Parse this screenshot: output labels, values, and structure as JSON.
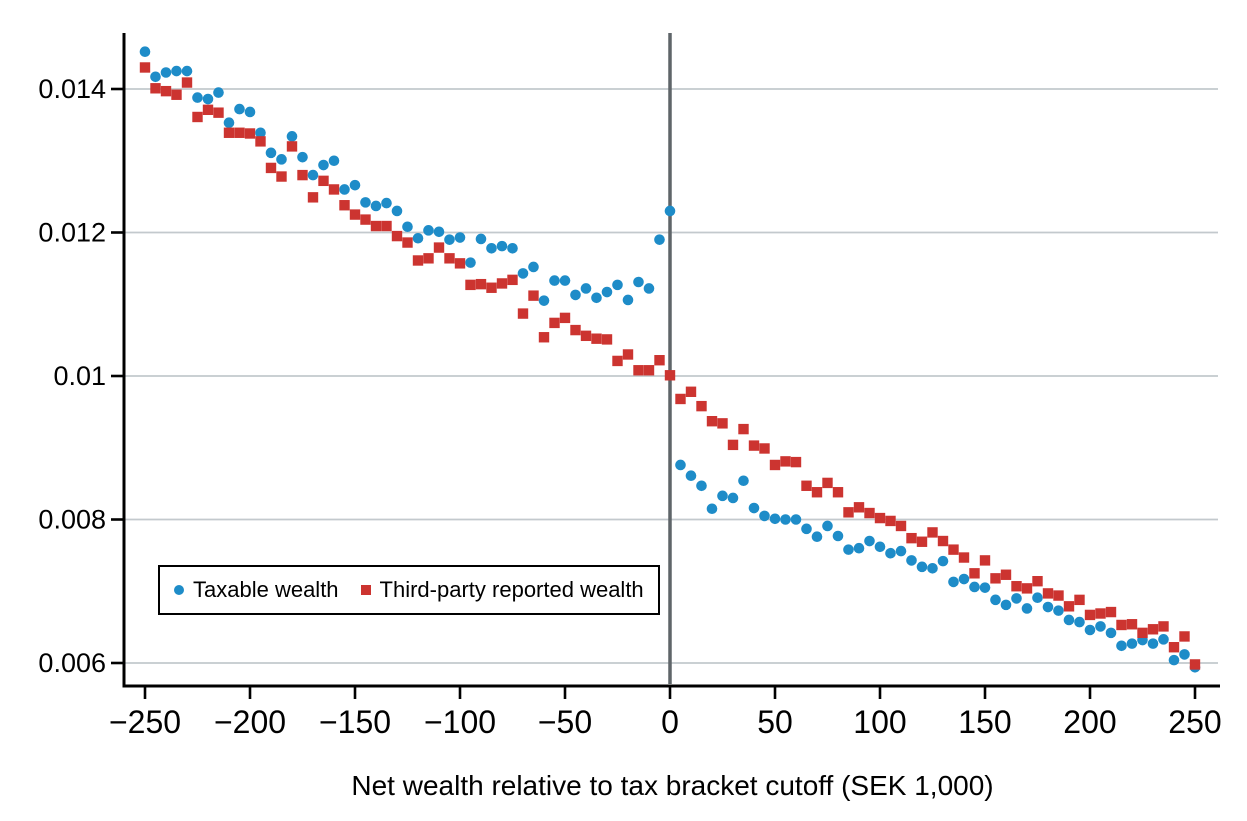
{
  "chart_data": {
    "type": "scatter",
    "title": "",
    "xlabel": "Net wealth relative to tax bracket cutoff (SEK 1,000)",
    "ylabel": "",
    "xlim": [
      -259,
      262
    ],
    "ylim": [
      0.0057,
      0.0148
    ],
    "grid": "horizontal",
    "reference_line_x": 0,
    "legend_position": "inside-bottom-left",
    "x_ticks": [
      -250,
      -200,
      -150,
      -100,
      -50,
      0,
      50,
      100,
      150,
      200,
      250
    ],
    "x_tick_labels": [
      "−250",
      "−200",
      "−150",
      "−100",
      "−50",
      "0",
      "50",
      "100",
      "150",
      "200",
      "250"
    ],
    "y_ticks": [
      0.006,
      0.008,
      0.01,
      0.012,
      0.014
    ],
    "y_tick_labels": [
      "0.006",
      "0.008",
      "0.01",
      "0.012",
      "0.014"
    ],
    "colors": {
      "taxable": "#1e8cc8",
      "third_party": "#cc3430",
      "gridline": "#c3c9cd",
      "reference_line": "#5f6569",
      "axis": "#000000"
    },
    "series": [
      {
        "name": "Taxable wealth",
        "marker": "circle",
        "color": "#1e8cc8",
        "points": [
          [
            -250,
            0.01452
          ],
          [
            -245,
            0.01417
          ],
          [
            -240,
            0.01423
          ],
          [
            -235,
            0.01425
          ],
          [
            -230,
            0.01425
          ],
          [
            -225,
            0.01388
          ],
          [
            -220,
            0.01386
          ],
          [
            -215,
            0.01395
          ],
          [
            -210,
            0.01353
          ],
          [
            -205,
            0.01372
          ],
          [
            -200,
            0.01368
          ],
          [
            -195,
            0.01339
          ],
          [
            -190,
            0.01311
          ],
          [
            -185,
            0.01302
          ],
          [
            -180,
            0.01334
          ],
          [
            -175,
            0.01305
          ],
          [
            -170,
            0.0128
          ],
          [
            -165,
            0.01294
          ],
          [
            -160,
            0.013
          ],
          [
            -155,
            0.0126
          ],
          [
            -150,
            0.01266
          ],
          [
            -145,
            0.01242
          ],
          [
            -140,
            0.01237
          ],
          [
            -135,
            0.01241
          ],
          [
            -130,
            0.0123
          ],
          [
            -125,
            0.01208
          ],
          [
            -120,
            0.01192
          ],
          [
            -115,
            0.01203
          ],
          [
            -110,
            0.01201
          ],
          [
            -105,
            0.0119
          ],
          [
            -100,
            0.01193
          ],
          [
            -95,
            0.01158
          ],
          [
            -90,
            0.01191
          ],
          [
            -85,
            0.01178
          ],
          [
            -80,
            0.01181
          ],
          [
            -75,
            0.01178
          ],
          [
            -70,
            0.01143
          ],
          [
            -65,
            0.01152
          ],
          [
            -60,
            0.01105
          ],
          [
            -55,
            0.01133
          ],
          [
            -50,
            0.01133
          ],
          [
            -45,
            0.01113
          ],
          [
            -40,
            0.01122
          ],
          [
            -35,
            0.01109
          ],
          [
            -30,
            0.01117
          ],
          [
            -25,
            0.01127
          ],
          [
            -20,
            0.01106
          ],
          [
            -15,
            0.01131
          ],
          [
            -10,
            0.01122
          ],
          [
            -5,
            0.0119
          ],
          [
            0,
            0.0123
          ],
          [
            5,
            0.00876
          ],
          [
            10,
            0.00861
          ],
          [
            15,
            0.00847
          ],
          [
            20,
            0.00815
          ],
          [
            25,
            0.00833
          ],
          [
            30,
            0.0083
          ],
          [
            35,
            0.00854
          ],
          [
            40,
            0.00816
          ],
          [
            45,
            0.00805
          ],
          [
            50,
            0.00801
          ],
          [
            55,
            0.008
          ],
          [
            60,
            0.008
          ],
          [
            65,
            0.00787
          ],
          [
            70,
            0.00776
          ],
          [
            75,
            0.00791
          ],
          [
            80,
            0.00777
          ],
          [
            85,
            0.00758
          ],
          [
            90,
            0.0076
          ],
          [
            95,
            0.0077
          ],
          [
            100,
            0.00762
          ],
          [
            105,
            0.00753
          ],
          [
            110,
            0.00756
          ],
          [
            115,
            0.00743
          ],
          [
            120,
            0.00734
          ],
          [
            125,
            0.00732
          ],
          [
            130,
            0.00742
          ],
          [
            135,
            0.00713
          ],
          [
            140,
            0.00717
          ],
          [
            145,
            0.00706
          ],
          [
            150,
            0.00705
          ],
          [
            155,
            0.00688
          ],
          [
            160,
            0.00681
          ],
          [
            165,
            0.0069
          ],
          [
            170,
            0.00676
          ],
          [
            175,
            0.00691
          ],
          [
            180,
            0.00678
          ],
          [
            185,
            0.00673
          ],
          [
            190,
            0.0066
          ],
          [
            195,
            0.00657
          ],
          [
            200,
            0.00646
          ],
          [
            205,
            0.00651
          ],
          [
            210,
            0.00642
          ],
          [
            215,
            0.00624
          ],
          [
            220,
            0.00627
          ],
          [
            225,
            0.00632
          ],
          [
            230,
            0.00627
          ],
          [
            235,
            0.00633
          ],
          [
            240,
            0.00604
          ],
          [
            245,
            0.00612
          ],
          [
            250,
            0.00594
          ]
        ]
      },
      {
        "name": "Third-party reported wealth",
        "marker": "square",
        "color": "#cc3430",
        "points": [
          [
            -250,
            0.0143
          ],
          [
            -245,
            0.01401
          ],
          [
            -240,
            0.01397
          ],
          [
            -235,
            0.01392
          ],
          [
            -230,
            0.01409
          ],
          [
            -225,
            0.01361
          ],
          [
            -220,
            0.01371
          ],
          [
            -215,
            0.01367
          ],
          [
            -210,
            0.01339
          ],
          [
            -205,
            0.01339
          ],
          [
            -200,
            0.01338
          ],
          [
            -195,
            0.01327
          ],
          [
            -190,
            0.0129
          ],
          [
            -185,
            0.01278
          ],
          [
            -180,
            0.0132
          ],
          [
            -175,
            0.0128
          ],
          [
            -170,
            0.01249
          ],
          [
            -165,
            0.01272
          ],
          [
            -160,
            0.0126
          ],
          [
            -155,
            0.01238
          ],
          [
            -150,
            0.01225
          ],
          [
            -145,
            0.01218
          ],
          [
            -140,
            0.01209
          ],
          [
            -135,
            0.01209
          ],
          [
            -130,
            0.01195
          ],
          [
            -125,
            0.01186
          ],
          [
            -120,
            0.01161
          ],
          [
            -115,
            0.01164
          ],
          [
            -110,
            0.01179
          ],
          [
            -105,
            0.01164
          ],
          [
            -100,
            0.01157
          ],
          [
            -95,
            0.01127
          ],
          [
            -90,
            0.01128
          ],
          [
            -85,
            0.01123
          ],
          [
            -80,
            0.01129
          ],
          [
            -75,
            0.01134
          ],
          [
            -70,
            0.01087
          ],
          [
            -65,
            0.01112
          ],
          [
            -60,
            0.01054
          ],
          [
            -55,
            0.01074
          ],
          [
            -50,
            0.01081
          ],
          [
            -45,
            0.01064
          ],
          [
            -40,
            0.01056
          ],
          [
            -35,
            0.01052
          ],
          [
            -30,
            0.01051
          ],
          [
            -25,
            0.01021
          ],
          [
            -20,
            0.0103
          ],
          [
            -15,
            0.01008
          ],
          [
            -10,
            0.01008
          ],
          [
            -5,
            0.01022
          ],
          [
            0,
            0.01001
          ],
          [
            5,
            0.00968
          ],
          [
            10,
            0.00978
          ],
          [
            15,
            0.00958
          ],
          [
            20,
            0.00937
          ],
          [
            25,
            0.00934
          ],
          [
            30,
            0.00904
          ],
          [
            35,
            0.00926
          ],
          [
            40,
            0.00903
          ],
          [
            45,
            0.00899
          ],
          [
            50,
            0.00876
          ],
          [
            55,
            0.00881
          ],
          [
            60,
            0.0088
          ],
          [
            65,
            0.00847
          ],
          [
            70,
            0.00838
          ],
          [
            75,
            0.00851
          ],
          [
            80,
            0.00838
          ],
          [
            85,
            0.0081
          ],
          [
            90,
            0.00817
          ],
          [
            95,
            0.00809
          ],
          [
            100,
            0.00802
          ],
          [
            105,
            0.00798
          ],
          [
            110,
            0.00791
          ],
          [
            115,
            0.00774
          ],
          [
            120,
            0.00769
          ],
          [
            125,
            0.00782
          ],
          [
            130,
            0.0077
          ],
          [
            135,
            0.00758
          ],
          [
            140,
            0.00747
          ],
          [
            145,
            0.00725
          ],
          [
            150,
            0.00743
          ],
          [
            155,
            0.00718
          ],
          [
            160,
            0.00723
          ],
          [
            165,
            0.00707
          ],
          [
            170,
            0.00704
          ],
          [
            175,
            0.00714
          ],
          [
            180,
            0.00697
          ],
          [
            185,
            0.00694
          ],
          [
            190,
            0.00679
          ],
          [
            195,
            0.00688
          ],
          [
            200,
            0.00667
          ],
          [
            205,
            0.00669
          ],
          [
            210,
            0.00671
          ],
          [
            215,
            0.00653
          ],
          [
            220,
            0.00654
          ],
          [
            225,
            0.00642
          ],
          [
            230,
            0.00647
          ],
          [
            235,
            0.00651
          ],
          [
            240,
            0.00622
          ],
          [
            245,
            0.00637
          ],
          [
            250,
            0.00598
          ]
        ]
      }
    ]
  }
}
